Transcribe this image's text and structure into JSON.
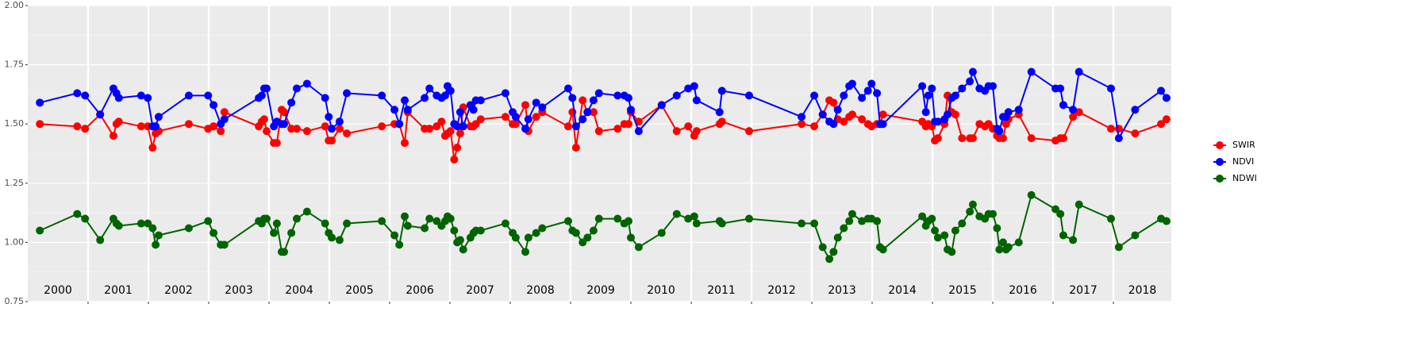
{
  "chart_data": {
    "type": "line",
    "x": [
      2000.2,
      2000.82,
      2000.95,
      2001.2,
      2001.42,
      2001.47,
      2001.51,
      2001.88,
      2001.99,
      2002.07,
      2002.12,
      2002.17,
      2002.67,
      2002.99,
      2003.08,
      2003.2,
      2003.26,
      2003.83,
      2003.88,
      2003.92,
      2003.96,
      2004.08,
      2004.13,
      2004.21,
      2004.25,
      2004.37,
      2004.46,
      2004.63,
      2004.93,
      2004.99,
      2005.04,
      2005.17,
      2005.29,
      2005.87,
      2006.08,
      2006.16,
      2006.25,
      2006.3,
      2006.58,
      2006.66,
      2006.78,
      2006.86,
      2006.92,
      2006.96,
      2007.01,
      2007.07,
      2007.12,
      2007.17,
      2007.22,
      2007.34,
      2007.39,
      2007.43,
      2007.51,
      2007.92,
      2008.04,
      2008.09,
      2008.25,
      2008.3,
      2008.43,
      2008.53,
      2008.96,
      2009.03,
      2009.09,
      2009.2,
      2009.28,
      2009.38,
      2009.47,
      2009.78,
      2009.89,
      2009.96,
      2010.0,
      2010.13,
      2010.51,
      2010.76,
      2010.95,
      2011.05,
      2011.09,
      2011.47,
      2011.51,
      2011.96,
      2012.83,
      2013.04,
      2013.18,
      2013.29,
      2013.36,
      2013.43,
      2013.53,
      2013.62,
      2013.67,
      2013.83,
      2013.93,
      2013.99,
      2014.08,
      2014.13,
      2014.18,
      2014.83,
      2014.89,
      2014.93,
      2014.99,
      2015.04,
      2015.09,
      2015.2,
      2015.25,
      2015.32,
      2015.38,
      2015.49,
      2015.62,
      2015.67,
      2015.78,
      2015.87,
      2015.93,
      2016.0,
      2016.07,
      2016.11,
      2016.17,
      2016.22,
      2016.26,
      2016.43,
      2016.64,
      2017.04,
      2017.12,
      2017.17,
      2017.33,
      2017.43,
      2017.96,
      2018.09,
      2018.36,
      2018.79,
      2018.88
    ],
    "series": [
      {
        "name": "SWIR",
        "color": "#ff0000",
        "values": [
          1.5,
          1.49,
          1.48,
          1.54,
          1.45,
          1.5,
          1.51,
          1.49,
          1.49,
          1.4,
          1.46,
          1.47,
          1.5,
          1.48,
          1.49,
          1.47,
          1.55,
          1.49,
          1.51,
          1.52,
          1.47,
          1.42,
          1.42,
          1.56,
          1.55,
          1.48,
          1.48,
          1.47,
          1.49,
          1.43,
          1.43,
          1.48,
          1.46,
          1.49,
          1.5,
          1.5,
          1.42,
          1.55,
          1.48,
          1.48,
          1.49,
          1.51,
          1.45,
          1.46,
          1.47,
          1.35,
          1.4,
          1.46,
          1.57,
          1.49,
          1.49,
          1.5,
          1.52,
          1.53,
          1.5,
          1.5,
          1.58,
          1.47,
          1.53,
          1.55,
          1.49,
          1.55,
          1.4,
          1.6,
          1.55,
          1.55,
          1.47,
          1.48,
          1.5,
          1.5,
          1.55,
          1.51,
          1.58,
          1.47,
          1.49,
          1.45,
          1.47,
          1.5,
          1.51,
          1.47,
          1.5,
          1.49,
          1.54,
          1.6,
          1.59,
          1.52,
          1.51,
          1.53,
          1.54,
          1.52,
          1.5,
          1.49,
          1.5,
          1.5,
          1.54,
          1.51,
          1.49,
          1.5,
          1.49,
          1.43,
          1.44,
          1.5,
          1.62,
          1.55,
          1.54,
          1.44,
          1.44,
          1.44,
          1.5,
          1.49,
          1.5,
          1.48,
          1.45,
          1.44,
          1.44,
          1.5,
          1.52,
          1.54,
          1.44,
          1.43,
          1.44,
          1.44,
          1.53,
          1.55,
          1.48,
          1.48,
          1.46,
          1.5,
          1.52
        ]
      },
      {
        "name": "NDVI",
        "color": "#0000ff",
        "values": [
          1.59,
          1.63,
          1.62,
          1.54,
          1.65,
          1.63,
          1.61,
          1.62,
          1.61,
          1.49,
          1.49,
          1.53,
          1.62,
          1.62,
          1.58,
          1.5,
          1.52,
          1.61,
          1.62,
          1.65,
          1.65,
          1.49,
          1.51,
          1.5,
          1.5,
          1.59,
          1.65,
          1.67,
          1.61,
          1.53,
          1.48,
          1.51,
          1.63,
          1.62,
          1.56,
          1.5,
          1.6,
          1.56,
          1.61,
          1.65,
          1.62,
          1.61,
          1.62,
          1.66,
          1.64,
          1.5,
          1.49,
          1.55,
          1.49,
          1.58,
          1.56,
          1.6,
          1.6,
          1.63,
          1.55,
          1.53,
          1.48,
          1.52,
          1.59,
          1.57,
          1.65,
          1.61,
          1.49,
          1.52,
          1.55,
          1.6,
          1.63,
          1.62,
          1.62,
          1.61,
          1.56,
          1.47,
          1.58,
          1.62,
          1.65,
          1.66,
          1.6,
          1.55,
          1.64,
          1.62,
          1.53,
          1.62,
          1.54,
          1.51,
          1.5,
          1.56,
          1.62,
          1.66,
          1.67,
          1.61,
          1.64,
          1.67,
          1.63,
          1.5,
          1.5,
          1.66,
          1.55,
          1.62,
          1.65,
          1.51,
          1.51,
          1.52,
          1.54,
          1.61,
          1.62,
          1.65,
          1.68,
          1.72,
          1.65,
          1.64,
          1.66,
          1.66,
          1.48,
          1.47,
          1.53,
          1.53,
          1.55,
          1.56,
          1.72,
          1.65,
          1.65,
          1.58,
          1.56,
          1.72,
          1.65,
          1.44,
          1.56,
          1.64,
          1.61
        ]
      },
      {
        "name": "NDWI",
        "color": "#006400",
        "values": [
          1.05,
          1.12,
          1.1,
          1.01,
          1.1,
          1.08,
          1.07,
          1.08,
          1.08,
          1.06,
          0.99,
          1.03,
          1.06,
          1.09,
          1.04,
          0.99,
          0.99,
          1.09,
          1.08,
          1.1,
          1.1,
          1.04,
          1.08,
          0.96,
          0.96,
          1.04,
          1.1,
          1.13,
          1.08,
          1.04,
          1.02,
          1.01,
          1.08,
          1.09,
          1.03,
          0.99,
          1.11,
          1.07,
          1.06,
          1.1,
          1.09,
          1.07,
          1.09,
          1.11,
          1.1,
          1.05,
          1.0,
          1.01,
          0.97,
          1.02,
          1.04,
          1.05,
          1.05,
          1.08,
          1.04,
          1.02,
          0.96,
          1.02,
          1.04,
          1.06,
          1.09,
          1.05,
          1.04,
          1.0,
          1.02,
          1.05,
          1.1,
          1.1,
          1.08,
          1.09,
          1.02,
          0.98,
          1.04,
          1.12,
          1.1,
          1.11,
          1.08,
          1.09,
          1.08,
          1.1,
          1.08,
          1.08,
          0.98,
          0.93,
          0.96,
          1.02,
          1.06,
          1.09,
          1.12,
          1.09,
          1.1,
          1.1,
          1.09,
          0.98,
          0.97,
          1.11,
          1.07,
          1.09,
          1.1,
          1.05,
          1.02,
          1.03,
          0.97,
          0.96,
          1.05,
          1.08,
          1.13,
          1.16,
          1.11,
          1.1,
          1.12,
          1.12,
          1.06,
          0.97,
          1.0,
          0.97,
          0.98,
          1.0,
          1.2,
          1.14,
          1.12,
          1.03,
          1.01,
          1.16,
          1.1,
          0.98,
          1.03,
          1.1,
          1.09
        ]
      }
    ],
    "xlim": [
      2000,
      2018.96
    ],
    "xticks": [
      2001,
      2002,
      2003,
      2004,
      2005,
      2006,
      2007,
      2008,
      2009,
      2010,
      2011,
      2012,
      2013,
      2014,
      2015,
      2016,
      2017,
      2018
    ],
    "year_labels": [
      "2000",
      "2001",
      "2002",
      "2003",
      "2004",
      "2005",
      "2006",
      "2007",
      "2008",
      "2009",
      "2010",
      "2011",
      "2012",
      "2013",
      "2014",
      "2015",
      "2016",
      "2017",
      "2018"
    ],
    "ylim": [
      0.75,
      2.0
    ],
    "yticks": [
      {
        "value": 0.75,
        "label": "0.75"
      },
      {
        "value": 1.0,
        "label": "1.00"
      },
      {
        "value": 1.25,
        "label": "1.25"
      },
      {
        "value": 1.5,
        "label": "1.50"
      },
      {
        "value": 1.75,
        "label": "1.75"
      },
      {
        "value": 2.0,
        "label": "2.00"
      }
    ],
    "y_minor_ticks": [
      0.875,
      1.125,
      1.375,
      1.625,
      1.875
    ],
    "grid": true,
    "legend": "right"
  }
}
